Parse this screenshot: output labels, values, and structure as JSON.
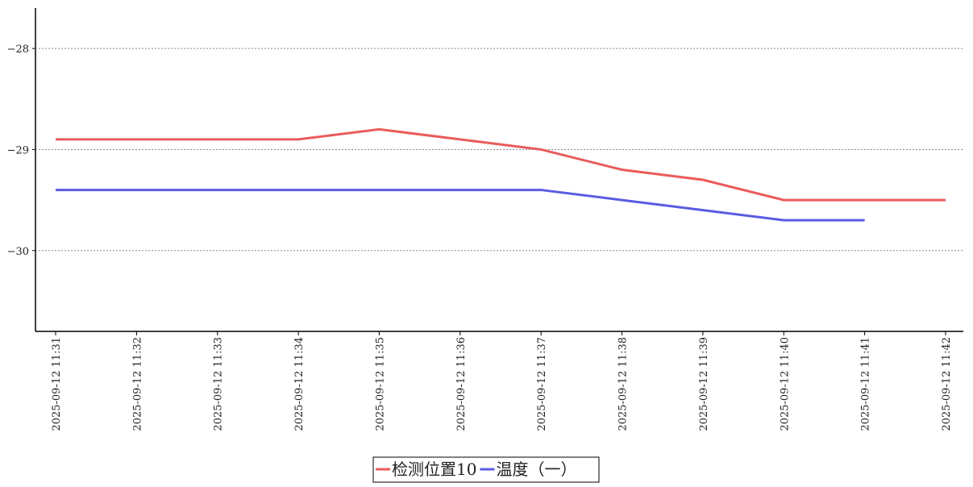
{
  "chart_data": {
    "type": "line",
    "categories": [
      "2025-09-12 11:31",
      "2025-09-12 11:32",
      "2025-09-12 11:33",
      "2025-09-12 11:34",
      "2025-09-12 11:35",
      "2025-09-12 11:36",
      "2025-09-12 11:37",
      "2025-09-12 11:38",
      "2025-09-12 11:39",
      "2025-09-12 11:40",
      "2025-09-12 11:41",
      "2025-09-12 11:42"
    ],
    "series": [
      {
        "name": "检测位置10",
        "color": "#ea5b5b",
        "values": [
          -28.9,
          -28.9,
          -28.9,
          -28.9,
          -28.8,
          -28.9,
          -29.0,
          -29.2,
          -29.3,
          -29.5,
          -29.5,
          -29.5
        ]
      },
      {
        "name": "温度（一）",
        "color": "#5b5be2",
        "values": [
          -29.4,
          -29.4,
          -29.4,
          -29.4,
          -29.4,
          -29.4,
          -29.4,
          -29.5,
          -29.6,
          -29.7,
          -29.7,
          null
        ]
      }
    ],
    "ylim": [
      -30.8,
      -27.6
    ],
    "yticks": [
      {
        "value": -28,
        "label": "−28"
      },
      {
        "value": -29,
        "label": "−29"
      },
      {
        "value": -30,
        "label": "−30"
      }
    ],
    "grid": true,
    "legend": "bottom"
  }
}
